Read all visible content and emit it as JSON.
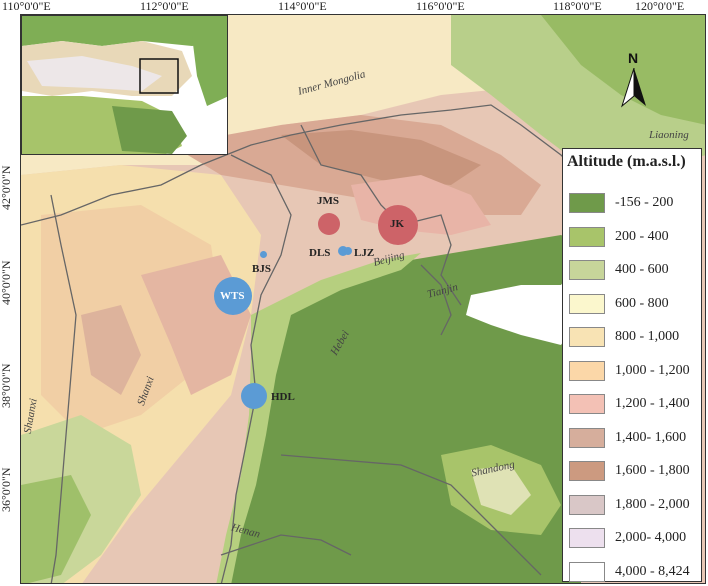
{
  "ticks": {
    "top": [
      "110°0'0\"E",
      "112°0'0\"E",
      "114°0'0\"E",
      "116°0'0\"E",
      "118°0'0\"E",
      "120°0'0\"E"
    ],
    "left": [
      "42°0'0\"N",
      "40°0'0\"N",
      "38°0'0\"N",
      "36°0'0\"N"
    ]
  },
  "regions": {
    "inner_mongolia": "Inner Mongolia",
    "liaoning": "Liaoning",
    "beijing": "Beijing",
    "tianjin": "Tianjin",
    "hebei": "Hebei",
    "shanxi": "Shanxi",
    "shaanxi": "Shaanxi",
    "shandong": "Shandong",
    "henan": "Henan"
  },
  "sites": {
    "jms": {
      "label": "JMS",
      "color": "#cd6368"
    },
    "jk": {
      "label": "JK",
      "color": "#cd6368"
    },
    "dls": {
      "label": "DLS",
      "color": "#5b9bd5"
    },
    "ljz": {
      "label": "LJZ",
      "color": "#5b9bd5"
    },
    "bjs": {
      "label": "BJS",
      "color": "#5b9bd5"
    },
    "wts": {
      "label": "WTS",
      "color": "#5b9bd5"
    },
    "hdl": {
      "label": "HDL",
      "color": "#5b9bd5"
    }
  },
  "north_arrow": {
    "label": "N"
  },
  "legend": {
    "title": "Altitude (m.a.s.l.)",
    "classes": [
      {
        "label": "-156 - 200",
        "color": "#6f9a4a"
      },
      {
        "label": "200 - 400",
        "color": "#a8c46a"
      },
      {
        "label": "400 - 600",
        "color": "#c7d59a"
      },
      {
        "label": "600 - 800",
        "color": "#fbf7cd"
      },
      {
        "label": "800 - 1,000",
        "color": "#f8e3b4"
      },
      {
        "label": "1,000 - 1,200",
        "color": "#fbd7a8"
      },
      {
        "label": "1,200 - 1,400",
        "color": "#f3c1b5"
      },
      {
        "label": "1,400- 1,600",
        "color": "#d6ae9c"
      },
      {
        "label": "1,600 - 1,800",
        "color": "#cc9a80"
      },
      {
        "label": "1,800 - 2,000",
        "color": "#d9c7c7"
      },
      {
        "label": "2,000- 4,000",
        "color": "#ede0ee"
      },
      {
        "label": "4,000 - 8,424",
        "color": "#ffffff"
      }
    ]
  }
}
